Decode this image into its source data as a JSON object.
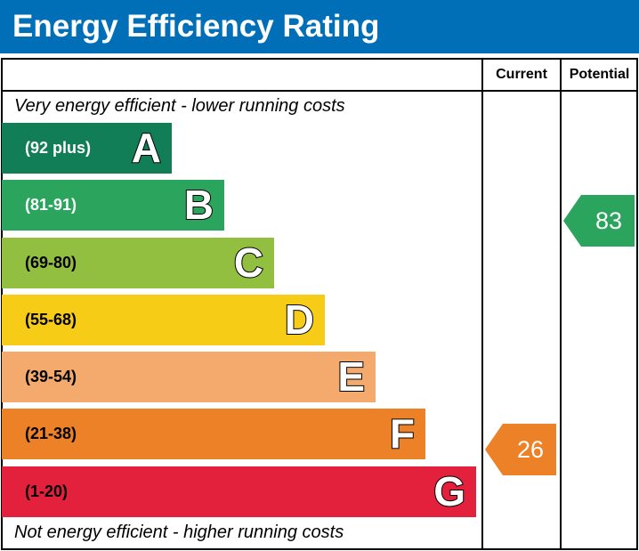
{
  "title": "Energy Efficiency Rating",
  "chart_data": {
    "type": "bar",
    "title": "Energy Efficiency Rating",
    "columns": [
      "Current",
      "Potential"
    ],
    "top_note": "Very energy efficient - lower running costs",
    "bottom_note": "Not energy efficient - higher running costs",
    "bands": [
      {
        "letter": "A",
        "range": "(92 plus)",
        "color": "#117e58",
        "text_color": "#ffffff"
      },
      {
        "letter": "B",
        "range": "(81-91)",
        "color": "#2ba55d",
        "text_color": "#ffffff"
      },
      {
        "letter": "C",
        "range": "(69-80)",
        "color": "#93bf41",
        "text_color": "#000000"
      },
      {
        "letter": "D",
        "range": "(55-68)",
        "color": "#f6cc17",
        "text_color": "#000000"
      },
      {
        "letter": "E",
        "range": "(39-54)",
        "color": "#f3aa6c",
        "text_color": "#000000"
      },
      {
        "letter": "F",
        "range": "(21-38)",
        "color": "#ed8128",
        "text_color": "#000000"
      },
      {
        "letter": "G",
        "range": "(1-20)",
        "color": "#e3213c",
        "text_color": "#000000"
      }
    ],
    "current": {
      "value": "26",
      "band": "F",
      "color": "#ed8128"
    },
    "potential": {
      "value": "83",
      "band": "B",
      "color": "#2ba55d"
    }
  }
}
